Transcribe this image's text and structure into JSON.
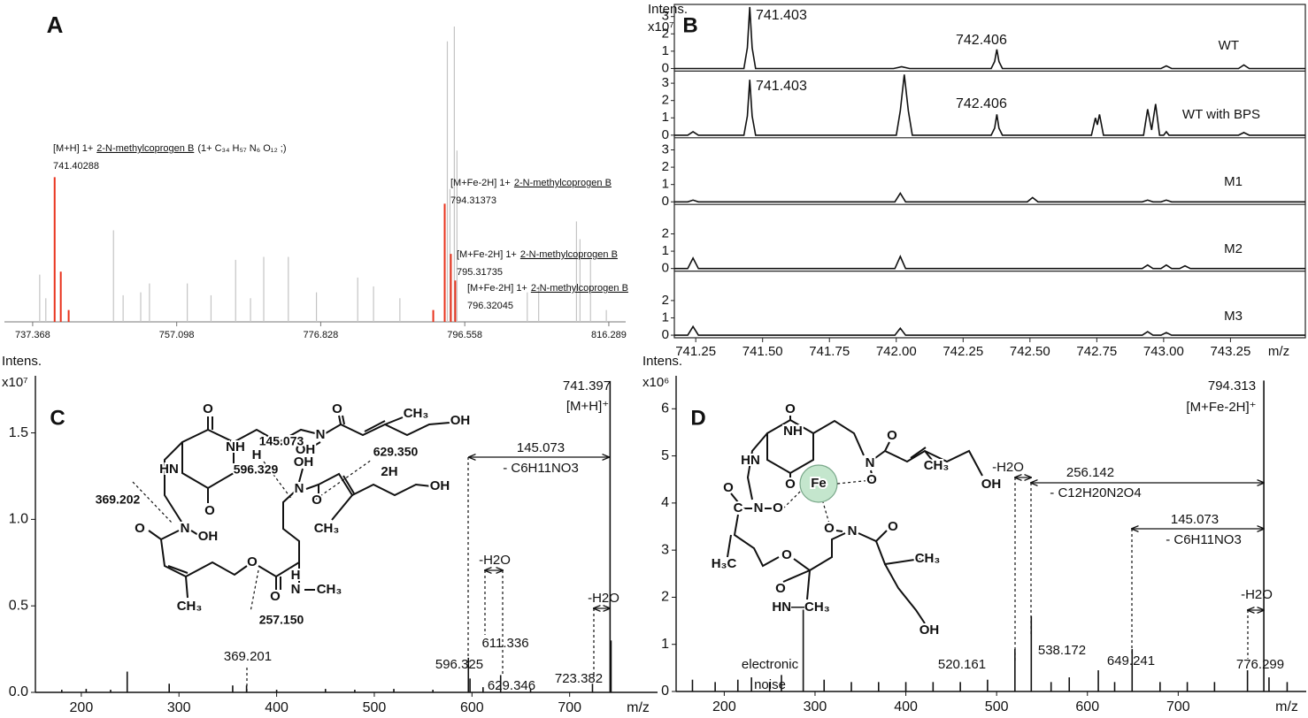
{
  "chart_data": [
    {
      "type": "stick-spectrum",
      "panel_label": "A",
      "xlim": [
        733.5,
        818.6
      ],
      "ylim": [
        0,
        100
      ],
      "xticks": [
        737.368,
        757.098,
        776.828,
        796.558,
        816.289
      ],
      "series": [
        {
          "color": "#c4c4c4",
          "x": [
            738.33,
            739.17,
            748.44,
            749.76,
            752.17,
            753.37,
            758.55,
            761.8,
            765.17,
            767.21,
            769.02,
            772.39,
            776.24,
            781.89,
            784.06,
            787.67,
            794.17,
            794.53,
            795.13,
            795.49,
            805.12,
            806.68,
            811.86,
            812.34,
            813.78,
            815.95
          ],
          "values": [
            16,
            8,
            31,
            9,
            10,
            13,
            13,
            9,
            21,
            8,
            22,
            22,
            10,
            15,
            12,
            8,
            95,
            45,
            100,
            58,
            10,
            12,
            34,
            28,
            21,
            4
          ]
        },
        {
          "color": "#e8321c",
          "x": [
            740.38,
            741.22,
            742.3,
            792.24,
            793.81,
            794.65,
            795.25
          ],
          "values": [
            49,
            17,
            4,
            4,
            40,
            23,
            14
          ]
        }
      ],
      "annotations": [
        {
          "adduct": "[M+H] 1+",
          "compound": "2-N-methylcoprogen B",
          "formula": "(1+ C₃₄ H₅₇ N₆ O₁₂ ;)",
          "mz": "741.40288"
        },
        {
          "adduct": "[M+Fe-2H] 1+",
          "compound": "2-N-methylcoprogen B",
          "mz": "794.31373"
        },
        {
          "adduct": "[M+Fe-2H] 1+",
          "compound": "2-N-methylcoprogen B",
          "mz": "795.31735"
        },
        {
          "adduct": "[M+Fe-2H] 1+",
          "compound": "2-N-methylcoprogen B",
          "mz": "796.32045"
        }
      ]
    },
    {
      "type": "stacked-traces",
      "panel_label": "B",
      "y_label": "Intens.",
      "y_exponent": "x10⁷",
      "x_label": "m/z",
      "xlim": [
        741.17,
        743.53
      ],
      "xticks": [
        741.25,
        {
          "value": 741.5,
          "label": "741.50"
        },
        741.75,
        {
          "value": 742,
          "label": "742.00"
        },
        742.25,
        {
          "value": 742.5,
          "label": "742.50"
        },
        742.75,
        {
          "value": 743,
          "label": "743.00"
        },
        743.25
      ],
      "series": [
        {
          "name": "WT",
          "ylim": [
            -0.15,
            3.7
          ],
          "yticks": [
            0,
            1,
            2,
            3
          ],
          "annotations": [
            "741.403",
            "742.406"
          ],
          "x": [
            741.17,
            741.43,
            741.443,
            741.452,
            741.461,
            741.474,
            741.99,
            742.02,
            742.05,
            742.355,
            742.368,
            742.376,
            742.384,
            742.397,
            742.99,
            743.01,
            743.03,
            743.28,
            743.3,
            743.32,
            743.53
          ],
          "values": [
            0,
            0,
            1.2,
            3.55,
            1.2,
            0,
            0,
            0.1,
            0,
            0,
            0.4,
            1.1,
            0.4,
            0,
            0,
            0.15,
            0,
            0,
            0.2,
            0,
            0
          ]
        },
        {
          "name": "WT with BPS",
          "ylim": [
            -0.15,
            3.7
          ],
          "yticks": [
            0,
            1,
            2,
            3
          ],
          "annotations": [
            "741.403",
            "742.406"
          ],
          "x": [
            741.17,
            741.22,
            741.24,
            741.26,
            741.43,
            741.443,
            741.452,
            741.461,
            741.474,
            742.0,
            742.015,
            742.03,
            742.045,
            742.06,
            742.355,
            742.368,
            742.376,
            742.384,
            742.397,
            742.73,
            742.745,
            742.752,
            742.76,
            742.775,
            742.925,
            742.94,
            742.955,
            742.97,
            742.985,
            743.0,
            743.01,
            743.02,
            743.28,
            743.3,
            743.32,
            743.53
          ],
          "values": [
            0,
            0,
            0.2,
            0,
            0,
            1.1,
            3.2,
            1.1,
            0,
            0,
            1.4,
            3.5,
            1.4,
            0,
            0,
            0.4,
            1.2,
            0.4,
            0,
            0,
            1.0,
            0.6,
            1.2,
            0,
            0,
            1.5,
            0.3,
            1.8,
            0,
            0,
            0.2,
            0,
            0,
            0.15,
            0,
            0
          ]
        },
        {
          "name": "M1",
          "ylim": [
            -0.15,
            3.7
          ],
          "yticks": [
            0,
            1,
            2,
            3
          ],
          "x": [
            741.17,
            741.22,
            741.24,
            741.26,
            741.995,
            742.015,
            742.035,
            742.49,
            742.51,
            742.53,
            742.92,
            742.94,
            742.96,
            742.99,
            743.01,
            743.03,
            743.53
          ],
          "values": [
            0,
            0,
            0.1,
            0,
            0,
            0.5,
            0,
            0,
            0.25,
            0,
            0,
            0.1,
            0,
            0,
            0.1,
            0,
            0
          ]
        },
        {
          "name": "M2",
          "ylim": [
            -0.15,
            3.7
          ],
          "yticks": [
            0,
            1,
            2
          ],
          "x": [
            741.17,
            741.22,
            741.24,
            741.26,
            741.995,
            742.015,
            742.035,
            742.92,
            742.94,
            742.96,
            742.99,
            743.01,
            743.03,
            743.06,
            743.08,
            743.1,
            743.53
          ],
          "values": [
            0,
            0,
            0.6,
            0,
            0,
            0.7,
            0,
            0,
            0.2,
            0,
            0,
            0.2,
            0,
            0,
            0.15,
            0,
            0
          ]
        },
        {
          "name": "M3",
          "ylim": [
            -0.15,
            3.7
          ],
          "yticks": [
            0,
            1,
            2
          ],
          "x": [
            741.17,
            741.22,
            741.24,
            741.26,
            741.995,
            742.015,
            742.035,
            742.92,
            742.94,
            742.96,
            742.99,
            743.01,
            743.03,
            743.53
          ],
          "values": [
            0,
            0,
            0.5,
            0,
            0,
            0.4,
            0,
            0,
            0.2,
            0,
            0,
            0.15,
            0,
            0
          ]
        }
      ]
    },
    {
      "type": "stick-spectrum",
      "panel_label": "C",
      "y_label": "Intens.",
      "y_exponent": "x10⁷",
      "x_label": "m/z",
      "xlim": [
        153,
        790
      ],
      "ylim": [
        0,
        1.83
      ],
      "xticks": [
        200,
        300,
        400,
        500,
        600,
        700
      ],
      "yticks": [
        {
          "value": 0,
          "label": "0.0"
        },
        0.5,
        {
          "value": 1,
          "label": "1.0"
        },
        1.5
      ],
      "series": [
        {
          "color": "#111",
          "x": [
            180,
            205,
            230,
            247,
            290,
            355,
            369.201,
            400,
            450,
            480,
            520,
            560,
            596.325,
            598,
            611.336,
            629.346,
            660,
            723.382,
            741.397,
            742.4
          ],
          "values": [
            0.015,
            0.02,
            0.015,
            0.12,
            0.05,
            0.04,
            0.04,
            0.015,
            0.02,
            0.015,
            0.02,
            0.015,
            0.2,
            0.08,
            0.03,
            0.1,
            0.02,
            0.05,
            1.8,
            0.3
          ]
        }
      ],
      "annotations": [
        "741.397",
        "[M+H]⁺",
        "145.073",
        "- C6H11NO3",
        "-H2O",
        "611.336",
        "-H2O",
        "596.325",
        "629.346",
        "723.382",
        "369.201"
      ],
      "structure_labels": [
        "O",
        "HN",
        "NH",
        "O",
        "N",
        "OH",
        "O",
        "CH₃",
        "OH",
        "H",
        "OH",
        "N",
        "2H",
        "O",
        "CH₃",
        "OH",
        "O",
        "N",
        "OH",
        "CH₃",
        "O",
        "O",
        "H",
        "N",
        "CH₃"
      ],
      "fragment_labels": [
        "369.202",
        "145.073",
        "629.350",
        "596.329",
        "257.150"
      ]
    },
    {
      "type": "stick-spectrum",
      "panel_label": "D",
      "y_label": "Intens.",
      "y_exponent": "x10⁶",
      "x_label": "m/z",
      "xlim": [
        147,
        841
      ],
      "ylim": [
        0,
        6.7
      ],
      "xticks": [
        200,
        300,
        400,
        500,
        600,
        700
      ],
      "yticks": [
        0,
        1,
        2,
        3,
        4,
        5,
        6
      ],
      "series": [
        {
          "color": "#111",
          "x": [
            165,
            190,
            215,
            230,
            250,
            263,
            287,
            310,
            340,
            370,
            400,
            430,
            460,
            490,
            520.161,
            538.172,
            560,
            580,
            612,
            630,
            649.241,
            680,
            710,
            740,
            776.299,
            794.313,
            800,
            820
          ],
          "values": [
            0.25,
            0.2,
            0.25,
            0.3,
            0.2,
            0.35,
            1.8,
            0.25,
            0.2,
            0.2,
            0.2,
            0.2,
            0.2,
            0.25,
            0.9,
            1.6,
            0.2,
            0.3,
            0.45,
            0.2,
            0.9,
            0.2,
            0.2,
            0.2,
            0.45,
            6.6,
            0.3,
            0.2
          ]
        }
      ],
      "annotations": [
        "794.313",
        "[M+Fe-2H]⁺",
        "256.142",
        "- C12H20N2O4",
        "145.073",
        "- C6H11NO3",
        "-H2O",
        "-H2O",
        "electronic",
        "noise",
        "520.161",
        "538.172",
        "649.241",
        "776.299"
      ],
      "structure_labels": [
        "O",
        "HN",
        "NH",
        "O",
        "N",
        "O",
        "O",
        "CH₃",
        "OH",
        "Fe",
        "O",
        "C",
        "N",
        "O",
        "H₃C",
        "O",
        "O",
        "HN—CH₃",
        "O",
        "N",
        "O",
        "CH₃",
        "OH"
      ]
    }
  ]
}
